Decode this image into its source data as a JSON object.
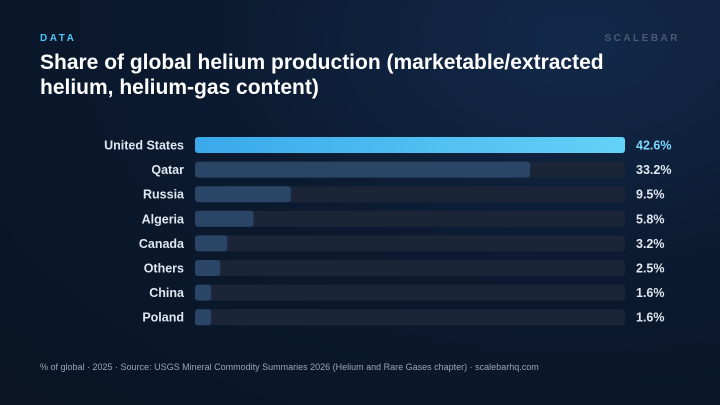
{
  "header": {
    "kicker": "DATA",
    "brand": "SCALEBAR",
    "title": "Share of global helium production (marketable/extracted helium, helium-gas content)"
  },
  "footer": {
    "note": "% of global · 2025 · Source: USGS Mineral Commodity Summaries 2026 (Helium and Rare Gases chapter) · scalebarhq.com"
  },
  "colors": {
    "highlight_start": "#3aa8ea",
    "highlight_end": "#62d2f8",
    "bar": "#2b4566",
    "track": "#1a2638",
    "highlight_label": "#7fd6ff",
    "label": "#dfe6ef"
  },
  "chart_data": {
    "type": "bar",
    "orientation": "horizontal",
    "categories": [
      "United States",
      "Qatar",
      "Russia",
      "Algeria",
      "Canada",
      "Others",
      "China",
      "Poland"
    ],
    "values": [
      42.6,
      33.2,
      9.5,
      5.8,
      3.2,
      2.5,
      1.6,
      1.6
    ],
    "value_labels": [
      "42.6%",
      "33.2%",
      "9.5%",
      "5.8%",
      "3.2%",
      "2.5%",
      "1.6%",
      "1.6%"
    ],
    "xlim": [
      0,
      42.6
    ],
    "highlight_index": 0
  }
}
